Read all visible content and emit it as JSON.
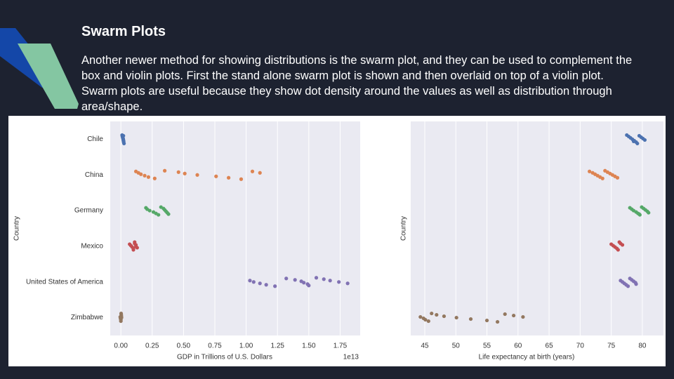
{
  "title": "Swarm Plots",
  "body": "Another newer method for showing distributions is the swarm plot, and they can be used to complement the box and violin plots. First the stand alone swarm plot is shown and then overlaid on top of a violin plot. Swarm plots are useful because they show dot density around the values as well as distribution through area/shape.",
  "chart_data": [
    {
      "type": "strip",
      "categories": [
        "Chile",
        "China",
        "Germany",
        "Mexico",
        "United States of America",
        "Zimbabwe"
      ],
      "colors": [
        "#4c72b0",
        "#dd8452",
        "#55a868",
        "#c44e52",
        "#8172b3",
        "#937860"
      ],
      "values": [
        [
          0.01,
          0.012,
          0.015,
          0.018,
          0.02,
          0.022,
          0.025,
          0.02,
          0.015,
          0.018,
          0.02,
          0.022
        ],
        [
          0.12,
          0.14,
          0.16,
          0.19,
          0.22,
          0.27,
          0.35,
          0.46,
          0.51,
          0.61,
          0.76,
          0.86,
          0.96,
          1.05,
          1.11
        ],
        [
          0.2,
          0.21,
          0.23,
          0.26,
          0.28,
          0.3,
          0.32,
          0.34,
          0.35,
          0.36,
          0.37,
          0.38
        ],
        [
          0.07,
          0.08,
          0.09,
          0.1,
          0.1,
          0.11,
          0.11,
          0.12,
          0.12,
          0.13
        ],
        [
          1.03,
          1.06,
          1.11,
          1.16,
          1.23,
          1.32,
          1.39,
          1.44,
          1.46,
          1.49,
          1.5,
          1.56,
          1.62,
          1.67,
          1.74,
          1.81
        ],
        [
          -0.005,
          -0.003,
          0,
          0,
          0.002,
          0.003,
          0.004,
          0.005
        ]
      ],
      "xlabel": "GDP in Trillions of U.S. Dollars",
      "ylabel": "Country",
      "offset_label": "1e13",
      "xlim": [
        -0.085,
        1.91
      ],
      "xticks": [
        {
          "value": 0,
          "label": "0.00"
        },
        {
          "value": 0.25,
          "label": "0.25"
        },
        {
          "value": 0.5,
          "label": "0.50"
        },
        {
          "value": 0.75,
          "label": "0.75"
        },
        {
          "value": 1,
          "label": "1.00"
        },
        {
          "value": 1.25,
          "label": "1.25"
        },
        {
          "value": 1.5,
          "label": "1.50"
        },
        {
          "value": 1.75,
          "label": "1.75"
        }
      ],
      "grid": true
    },
    {
      "type": "strip",
      "colors": [
        "#4c72b0",
        "#dd8452",
        "#55a868",
        "#c44e52",
        "#8172b3",
        "#937860"
      ],
      "values": [
        [
          77.5,
          77.8,
          78.1,
          78.4,
          78.7,
          79,
          79.2,
          79.5,
          79.8,
          80.1,
          80.4,
          78.6
        ],
        [
          71.5,
          72,
          72.4,
          72.8,
          73.2,
          73.6,
          74,
          74.4,
          74.8,
          75.2,
          75.6,
          76
        ],
        [
          78,
          78.3,
          78.6,
          79,
          79.3,
          79.6,
          79.9,
          80.2,
          80.5,
          80.8,
          81,
          79.5
        ],
        [
          75,
          75.3,
          75.6,
          75.9,
          76.1,
          76.3,
          76.5,
          76.8
        ],
        [
          76.5,
          76.8,
          77.1,
          77.4,
          77.7,
          78,
          78.3,
          78.6,
          78.9,
          79
        ],
        [
          44.3,
          44.8,
          45.1,
          45.6,
          46.1,
          46.9,
          48.1,
          50.1,
          52.4,
          55,
          56.7,
          57.9,
          59.3,
          60.8
        ]
      ],
      "xlabel": "Life expectancy at birth (years)",
      "ylabel": "Country",
      "xlim": [
        42.74,
        83.4
      ],
      "xticks": [
        45,
        50,
        55,
        60,
        65,
        70,
        75,
        80
      ],
      "grid": true
    }
  ]
}
